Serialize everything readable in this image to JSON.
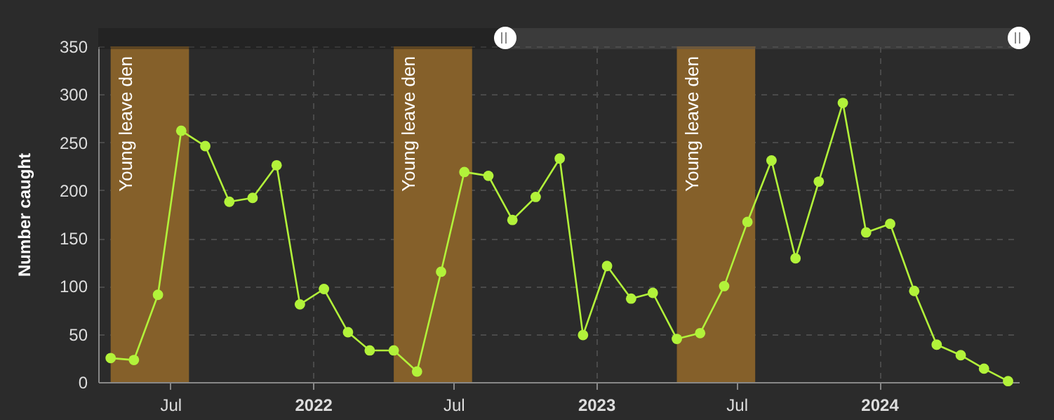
{
  "chart_data": {
    "type": "line",
    "ylabel": "Number caught",
    "x": [
      "2021-04-15",
      "2021-05-15",
      "2021-06-15",
      "2021-07-15",
      "2021-08-15",
      "2021-09-15",
      "2021-10-15",
      "2021-11-15",
      "2021-12-15",
      "2022-01-15",
      "2022-02-15",
      "2022-03-15",
      "2022-04-15",
      "2022-05-15",
      "2022-06-15",
      "2022-07-15",
      "2022-08-15",
      "2022-09-15",
      "2022-10-15",
      "2022-11-15",
      "2022-12-15",
      "2023-01-15",
      "2023-02-15",
      "2023-03-15",
      "2023-04-15",
      "2023-05-15",
      "2023-06-15",
      "2023-07-15",
      "2023-08-15",
      "2023-09-15",
      "2023-10-15",
      "2023-11-15",
      "2023-12-15",
      "2024-01-15",
      "2024-02-15",
      "2024-03-15",
      "2024-04-15",
      "2024-05-15",
      "2024-06-15"
    ],
    "series": [
      {
        "color": "#b2f23a",
        "values": [
          25,
          23,
          91,
          262,
          246,
          188,
          192,
          226,
          81,
          97,
          52,
          33,
          33,
          11,
          115,
          219,
          215,
          169,
          193,
          233,
          49,
          121,
          87,
          93,
          45,
          51,
          100,
          167,
          231,
          129,
          209,
          291,
          156,
          165,
          95,
          39,
          28,
          14,
          1
        ]
      }
    ],
    "xlim": [
      "2021-03-30",
      "2024-06-29"
    ],
    "xticks": [
      {
        "value": "2021-07-01",
        "label": "Jul"
      },
      {
        "value": "2022-01-01",
        "label": "2022"
      },
      {
        "value": "2022-07-01",
        "label": "Jul"
      },
      {
        "value": "2023-01-01",
        "label": "2023"
      },
      {
        "value": "2023-07-01",
        "label": "Jul"
      },
      {
        "value": "2024-01-01",
        "label": "2024"
      }
    ],
    "ylim": [
      0,
      350
    ],
    "yticks": [
      0,
      50,
      100,
      150,
      200,
      250,
      300,
      350
    ],
    "bands": [
      {
        "axis": "x",
        "from": "2021-04-15",
        "to": "2021-07-25",
        "label": "Young leave den",
        "color": "#85602a"
      },
      {
        "axis": "x",
        "from": "2022-04-15",
        "to": "2022-07-25",
        "label": "Young leave den",
        "color": "#85602a"
      },
      {
        "axis": "x",
        "from": "2023-04-15",
        "to": "2023-07-25",
        "label": "Young leave den",
        "color": "#85602a"
      }
    ],
    "grid": true,
    "marker": "circle",
    "line_style": "solid"
  }
}
